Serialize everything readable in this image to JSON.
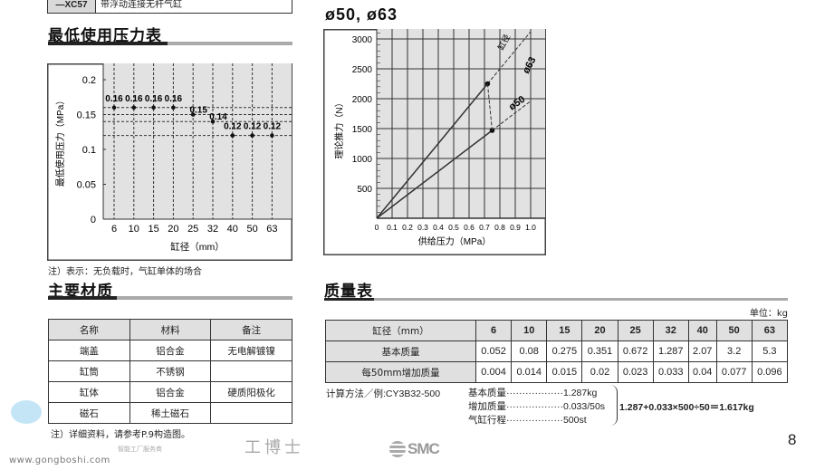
{
  "top_box": {
    "code": "—XC57",
    "description": "带浮动连接无杆气缸"
  },
  "min_pressure": {
    "heading": "最低使用压力表",
    "note": "注）表示：无负载时，气缸单体的场合"
  },
  "thrust": {
    "heading": "ø50, ø63"
  },
  "materials": {
    "heading": "主要材质",
    "columns": [
      "名称",
      "材料",
      "备注"
    ],
    "rows": [
      [
        "端盖",
        "铝合金",
        "无电解镀镍"
      ],
      [
        "缸筒",
        "不锈钢",
        ""
      ],
      [
        "缸体",
        "铝合金",
        "硬质阳极化"
      ],
      [
        "磁石",
        "稀土磁石",
        ""
      ]
    ],
    "note": "注）详细资料，请参考P.9构造图。"
  },
  "mass": {
    "heading": "质量表",
    "unit": "单位：kg",
    "header_label": "缸径（mm）",
    "bores": [
      "6",
      "10",
      "15",
      "20",
      "25",
      "32",
      "40",
      "50",
      "63"
    ],
    "rows": [
      {
        "label": "基本质量",
        "values": [
          "0.052",
          "0.08",
          "0.275",
          "0.351",
          "0.672",
          "1.287",
          "2.07",
          "3.2",
          "5.3"
        ]
      },
      {
        "label": "每50mm增加质量",
        "values": [
          "0.004",
          "0.014",
          "0.015",
          "0.02",
          "0.023",
          "0.033",
          "0.04",
          "0.077",
          "0.096"
        ]
      }
    ],
    "calc": {
      "title": "计算方法／例:CY3B32-500",
      "lines": [
        "基本质量··················1.287kg",
        "增加质量··················0.033/50s",
        "气缸行程··················500st"
      ],
      "result": "1.287+0.033×500÷50＝1.617kg"
    }
  },
  "watermark": {
    "brand": "工博士",
    "tagline": "智能工厂服务商",
    "url": "www.gongboshi.com"
  },
  "logo": "SMC",
  "page_number": "8",
  "chart_data": [
    {
      "type": "scatter",
      "title": "",
      "xlabel": "缸径（mm）",
      "ylabel": "最低使用压力（MPa）",
      "categories": [
        "6",
        "10",
        "15",
        "20",
        "25",
        "32",
        "40",
        "50",
        "63"
      ],
      "values": [
        0.16,
        0.16,
        0.16,
        0.16,
        0.15,
        0.14,
        0.12,
        0.12,
        0.12
      ],
      "labels": [
        "0.16",
        "0.16",
        "0.16",
        "0.16",
        "0.15",
        "0.14",
        "0.12",
        "0.12",
        "0.12"
      ],
      "ylim": [
        0,
        0.2
      ],
      "yticks": [
        "0",
        "0.05",
        "0.1",
        "0.15",
        "0.2"
      ],
      "grid": true
    },
    {
      "type": "line",
      "title": "ø50, ø63",
      "xlabel": "供给压力（MPa）",
      "ylabel": "理论推力（N）",
      "xlim": [
        0,
        1.0
      ],
      "ylim": [
        0,
        3000
      ],
      "xticks": [
        "0",
        "0.1",
        "0.2",
        "0.3",
        "0.4",
        "0.5",
        "0.6",
        "0.7",
        "0.8",
        "0.9",
        "1.0"
      ],
      "yticks": [
        "500",
        "1000",
        "1500",
        "2000",
        "2500",
        "3000"
      ],
      "annotation": "缸径",
      "series": [
        {
          "name": "ø63",
          "points": [
            [
              0,
              0
            ],
            [
              0.72,
              2250
            ]
          ],
          "dashed_to": [
            1.0,
            3120
          ]
        },
        {
          "name": "ø50",
          "points": [
            [
              0,
              0
            ],
            [
              0.75,
              1470
            ]
          ],
          "dashed_to": [
            1.0,
            1960
          ]
        }
      ],
      "grid": true
    }
  ]
}
